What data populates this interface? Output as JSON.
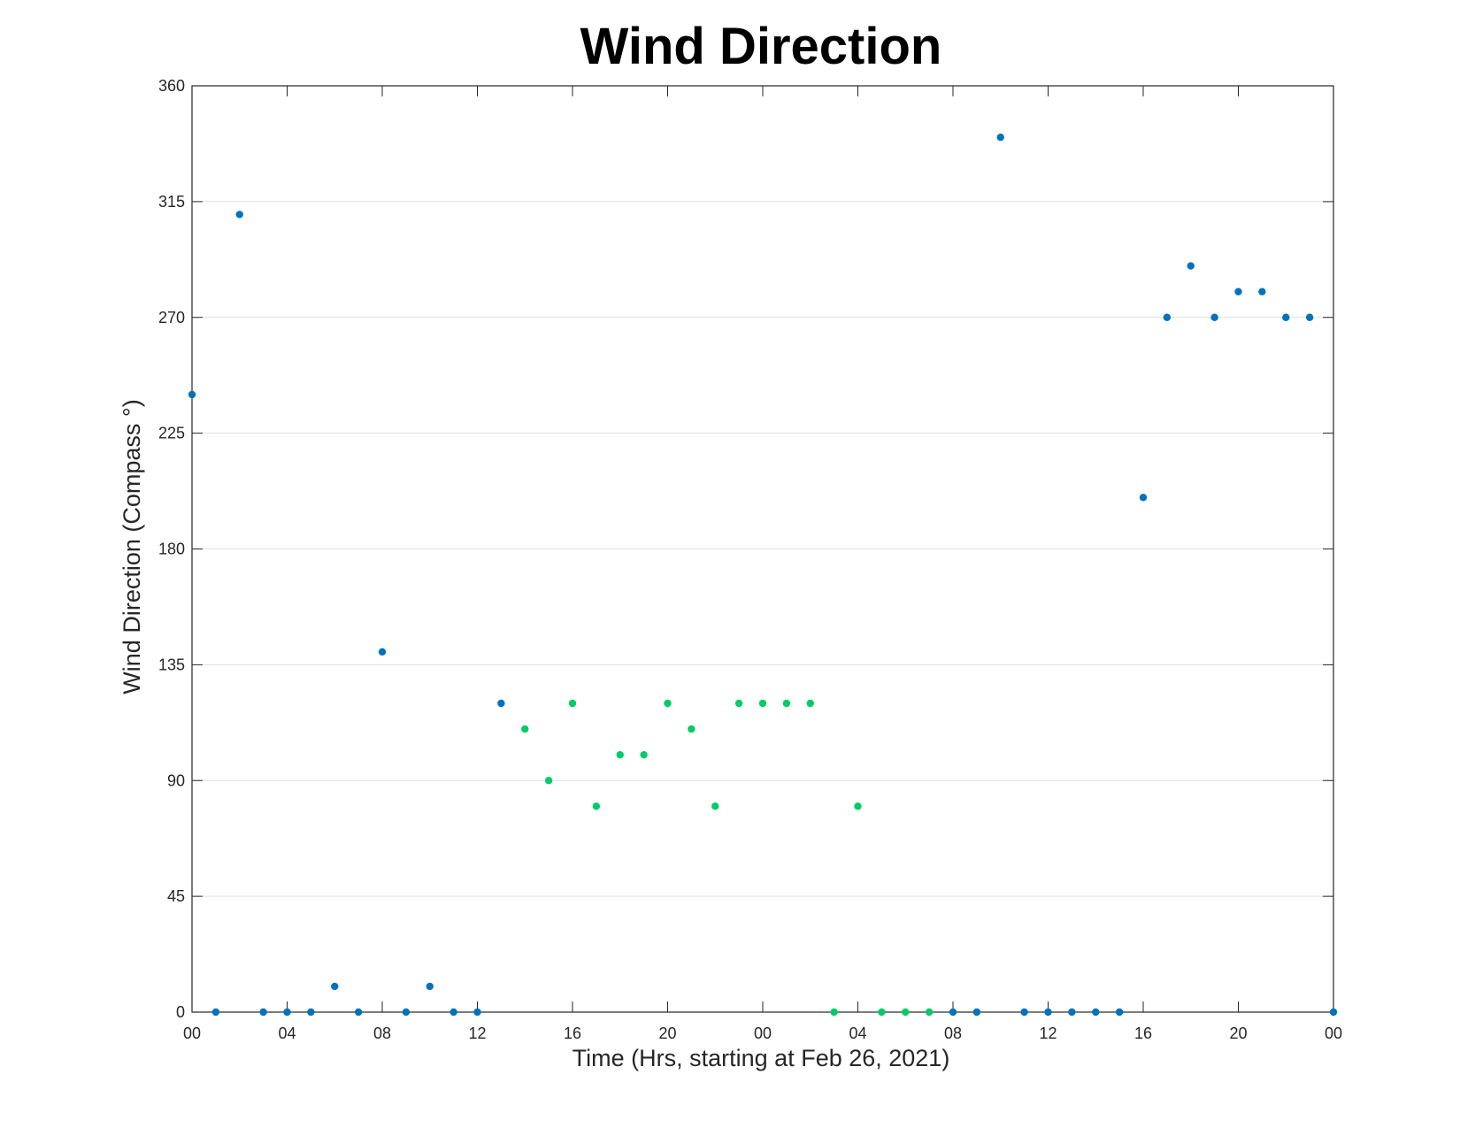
{
  "chart_data": {
    "type": "scatter",
    "title": "Wind Direction",
    "xlabel": "Time (Hrs, starting at Feb 26, 2021)",
    "ylabel": "Wind Direction (Compass °)",
    "xlim": [
      0,
      48
    ],
    "ylim": [
      0,
      360
    ],
    "grid": "horizontal",
    "x_tick_values": [
      0,
      4,
      8,
      12,
      16,
      20,
      24,
      28,
      32,
      36,
      40,
      44,
      48
    ],
    "x_tick_labels": [
      "00",
      "04",
      "08",
      "12",
      "16",
      "20",
      "00",
      "04",
      "08",
      "12",
      "16",
      "20",
      "00"
    ],
    "y_ticks": [
      0,
      45,
      90,
      135,
      180,
      225,
      270,
      315,
      360
    ],
    "series": [
      {
        "color": "#0072bd",
        "points": [
          [
            0,
            240
          ],
          [
            1,
            0
          ],
          [
            2,
            310
          ],
          [
            3,
            0
          ],
          [
            4,
            0
          ],
          [
            5,
            0
          ],
          [
            6,
            10
          ],
          [
            7,
            0
          ],
          [
            8,
            140
          ],
          [
            9,
            0
          ],
          [
            10,
            10
          ],
          [
            11,
            0
          ],
          [
            12,
            0
          ],
          [
            13,
            120
          ],
          [
            32,
            0
          ],
          [
            33,
            0
          ],
          [
            34,
            340
          ],
          [
            35,
            0
          ],
          [
            36,
            0
          ],
          [
            37,
            0
          ],
          [
            38,
            0
          ],
          [
            39,
            0
          ],
          [
            40,
            200
          ],
          [
            41,
            270
          ],
          [
            42,
            290
          ],
          [
            43,
            270
          ],
          [
            44,
            280
          ],
          [
            45,
            280
          ],
          [
            46,
            270
          ],
          [
            47,
            270
          ],
          [
            48,
            0
          ]
        ]
      },
      {
        "color": "#00cc66",
        "points": [
          [
            14,
            110
          ],
          [
            15,
            90
          ],
          [
            16,
            120
          ],
          [
            17,
            80
          ],
          [
            18,
            100
          ],
          [
            19,
            100
          ],
          [
            20,
            120
          ],
          [
            21,
            110
          ],
          [
            22,
            80
          ],
          [
            23,
            120
          ],
          [
            24,
            120
          ],
          [
            25,
            120
          ],
          [
            26,
            120
          ],
          [
            27,
            0
          ],
          [
            28,
            80
          ],
          [
            29,
            0
          ],
          [
            30,
            0
          ],
          [
            31,
            0
          ]
        ]
      }
    ]
  }
}
